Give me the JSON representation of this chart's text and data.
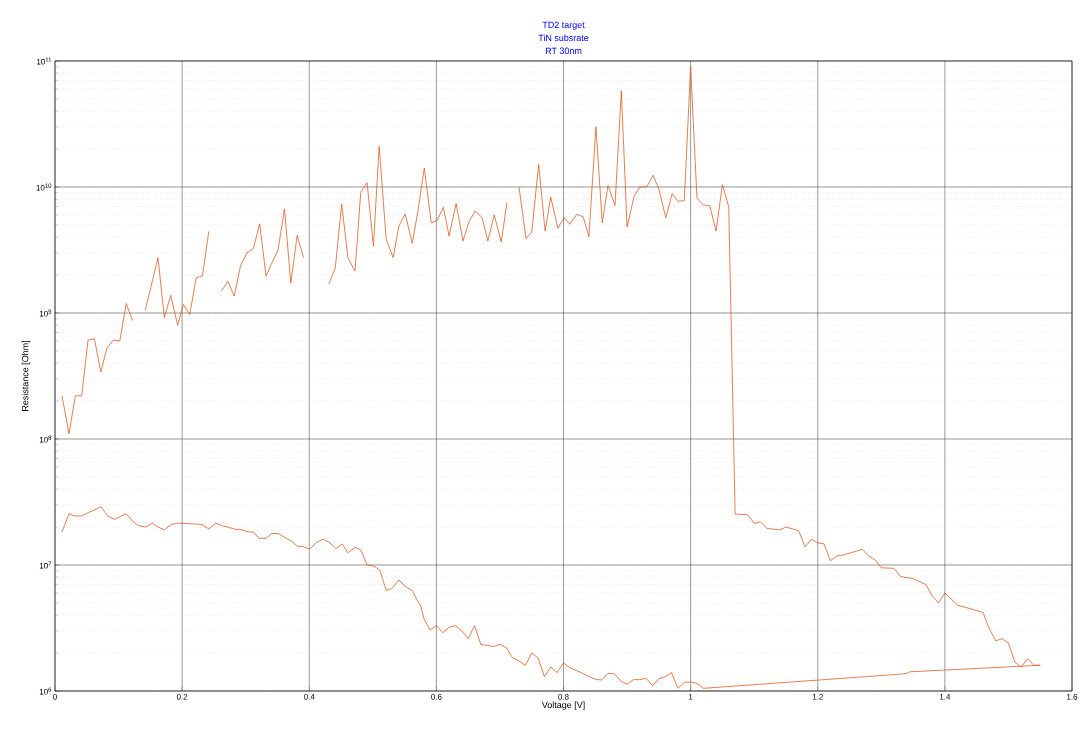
{
  "chart_data": {
    "type": "line",
    "title": "TD2 target",
    "subtitle": "TiN subsrate",
    "annotations": [
      "RT 30nm"
    ],
    "xlabel": "Voltage [V]",
    "ylabel": "Resistance [Ohm]",
    "xlim": [
      0,
      1.6
    ],
    "xticks": [
      0,
      0.2,
      0.4,
      0.6,
      0.8,
      1,
      1.2,
      1.4,
      1.6
    ],
    "ylim": [
      1000000,
      100000000000
    ],
    "yticks": [
      {
        "value": 1000000,
        "label": "10$^{6}$"
      },
      {
        "value": 10000000,
        "label": "10$^{7}$"
      },
      {
        "value": 100000000,
        "label": "10$^{8}$"
      },
      {
        "value": 1000000000,
        "label": "10$^{9}$"
      },
      {
        "value": 10000000000,
        "label": "10$^{10}$"
      },
      {
        "value": 100000000000,
        "label": "10$^{11}$"
      }
    ],
    "log": "y",
    "grid": true,
    "marker": "none",
    "line_style": "solid",
    "series": [
      {
        "color": "#d95319",
        "x": [
          0.011,
          0.022,
          0.032,
          0.042,
          0.052,
          0.062,
          0.072,
          0.082,
          0.092,
          0.102,
          0.112,
          0.122,
          0.132,
          0.142,
          0.162,
          0.172,
          0.182,
          0.193,
          0.202,
          0.212,
          0.222,
          0.232,
          0.242,
          0.252,
          0.262,
          0.272,
          0.282,
          0.292,
          0.302,
          0.312,
          0.322,
          0.332,
          0.342,
          0.351,
          0.361,
          0.371,
          0.381,
          0.391,
          0.41,
          0.431,
          0.441,
          0.451,
          0.461,
          0.472,
          0.481,
          0.491,
          0.501,
          0.51,
          0.521,
          0.532,
          0.541,
          0.551,
          0.562,
          0.571,
          0.581,
          0.592,
          0.601,
          0.611,
          0.62,
          0.631,
          0.642,
          0.651,
          0.661,
          0.672,
          0.681,
          0.691,
          0.702,
          0.711,
          0.72,
          0.73,
          0.741,
          0.75,
          0.761,
          0.771,
          0.78,
          0.791,
          0.801,
          0.81,
          0.821,
          0.831,
          0.84,
          0.851,
          0.861,
          0.87,
          0.881,
          0.891,
          0.9,
          0.911,
          0.92,
          0.931,
          0.941,
          0.95,
          0.961,
          0.971,
          0.98,
          0.99,
          1.0,
          1.01,
          1.02,
          1.03,
          1.04,
          1.05,
          1.06,
          1.07,
          1.09,
          1.1,
          1.11,
          1.12,
          1.14,
          1.15,
          1.17,
          1.18,
          1.19,
          1.2,
          1.21,
          1.22,
          1.23,
          1.24,
          1.27,
          1.28,
          1.29,
          1.3,
          1.32,
          1.33,
          1.35,
          1.37,
          1.38,
          1.39,
          1.4,
          1.42,
          1.44,
          1.46,
          1.47,
          1.48,
          1.49,
          1.5,
          1.51,
          1.52,
          1.53,
          1.54,
          1.55,
          1.345,
          1.34,
          1.33,
          1.02,
          1.01,
          1.0,
          0.99,
          0.98,
          0.97,
          0.96,
          0.95,
          0.94,
          0.93,
          0.92,
          0.91,
          0.9,
          0.89,
          0.88,
          0.87,
          0.86,
          0.85,
          0.84,
          0.83,
          0.82,
          0.81,
          0.8,
          0.79,
          0.78,
          0.77,
          0.76,
          0.75,
          0.74,
          0.73,
          0.72,
          0.71,
          0.7,
          0.69,
          0.68,
          0.67,
          0.66,
          0.65,
          0.64,
          0.63,
          0.62,
          0.61,
          0.6,
          0.59,
          0.58,
          0.575,
          0.571,
          0.562,
          0.552,
          0.541,
          0.53,
          0.521,
          0.511,
          0.502,
          0.491,
          0.481,
          0.472,
          0.461,
          0.452,
          0.442,
          0.431,
          0.422,
          0.412,
          0.401,
          0.39,
          0.382,
          0.371,
          0.362,
          0.351,
          0.341,
          0.332,
          0.321,
          0.312,
          0.304,
          0.291,
          0.283,
          0.272,
          0.263,
          0.253,
          0.242,
          0.231,
          0.193,
          0.183,
          0.172,
          0.162,
          0.153,
          0.143,
          0.132,
          0.123,
          0.112,
          0.102,
          0.093,
          0.083,
          0.072,
          0.063,
          0.052,
          0.042,
          0.031,
          0.022,
          0.011
        ],
        "values": [
          220000000,
          110000000,
          220000000,
          220000000,
          610000000,
          625000000,
          340000000,
          530000000,
          610000000,
          600000000,
          1190000000,
          870000000,
          null,
          1050000000,
          2750000000,
          920000000,
          1380000000,
          800000000,
          1170000000,
          970000000,
          1900000000,
          1970000000,
          4450000000,
          null,
          1500000000,
          1780000000,
          1360000000,
          2390000000,
          3000000000,
          3240000000,
          5100000000,
          1970000000,
          2540000000,
          3180000000,
          6700000000,
          1730000000,
          4130000000,
          2750000000,
          null,
          1700000000,
          2290000000,
          7300000000,
          2730000000,
          2150000000,
          9100000000,
          10800000000,
          3400000000,
          21000000000,
          3850000000,
          2750000000,
          4900000000,
          6100000000,
          3570000000,
          6450000000,
          14100000000,
          5200000000,
          5400000000,
          6900000000,
          4080000000,
          7400000000,
          3730000000,
          5270000000,
          6450000000,
          5700000000,
          3730000000,
          6000000000,
          3660000000,
          7500000000,
          null,
          10000000000,
          3900000000,
          4400000000,
          15100000000,
          4470000000,
          8300000000,
          4700000000,
          5700000000,
          5060000000,
          6070000000,
          5800000000,
          4030000000,
          30000000000,
          5200000000,
          10300000000,
          7150000000,
          58000000000,
          4800000000,
          8400000000,
          10000000000,
          10000000000,
          12400000000,
          9600000000,
          5700000000,
          8850000000,
          7700000000,
          7800000000,
          90000000000,
          8150000000,
          7200000000,
          7100000000,
          4470000000,
          10400000000,
          6950000000,
          25400000,
          25000000,
          21400000,
          22000000,
          19500000,
          19000000,
          20000000,
          18700000,
          13900000,
          16000000,
          15000000,
          14700000,
          10800000,
          11800000,
          12000000,
          13300000,
          11800000,
          11000000,
          9500000,
          9400000,
          8100000,
          7800000,
          7000000,
          5700000,
          5000000,
          6000000,
          4800000,
          4500000,
          4200000,
          3100000,
          2500000,
          2600000,
          2400000,
          1700000,
          1550000,
          1800000,
          1600000,
          1600000,
          1420000,
          1380000,
          1360000,
          1050000,
          1150000,
          1180000,
          1170000,
          1050000,
          1400000,
          1300000,
          1250000,
          1100000,
          1260000,
          1230000,
          1230000,
          1130000,
          1200000,
          1370000,
          1380000,
          1220000,
          1240000,
          1300000,
          1380000,
          1460000,
          1530000,
          1670000,
          1400000,
          1550000,
          1300000,
          1830000,
          2000000,
          1600000,
          1730000,
          1830000,
          2200000,
          2350000,
          2250000,
          2300000,
          2340000,
          3300000,
          2600000,
          3000000,
          3300000,
          3200000,
          2900000,
          3300000,
          3050000,
          3800000,
          4800000,
          5100000,
          6300000,
          6700000,
          7600000,
          6500000,
          6300000,
          9100000,
          9800000,
          10000000,
          13200000,
          13800000,
          12500000,
          14700000,
          13500000,
          15200000,
          16000000,
          15200000,
          13400000,
          14000000,
          14000000,
          15600000,
          16500000,
          17800000,
          17800000,
          16300000,
          16300000,
          18300000,
          18300000,
          19200000,
          19200000,
          20000000,
          20500000,
          21500000,
          19300000,
          21000000,
          21500000,
          21000000,
          19000000,
          20000000,
          21500000,
          20000000,
          20500000,
          22000000,
          25500000,
          24200000,
          23000000,
          24500000,
          29000000,
          27500000,
          26000000,
          24500000,
          24500000,
          25500000,
          18300000
        ]
      }
    ]
  }
}
